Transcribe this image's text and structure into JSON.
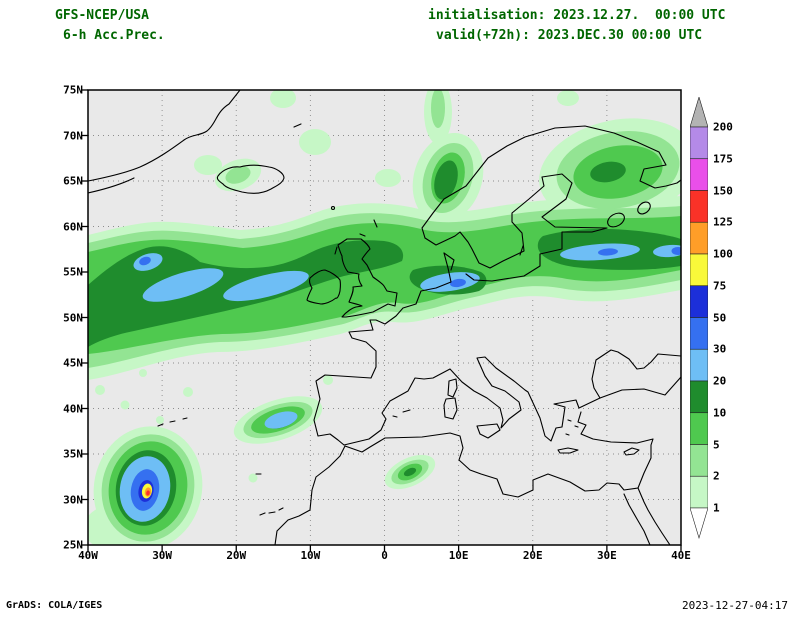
{
  "header": {
    "model": "GFS-NCEP/USA",
    "product": "6-h Acc.Prec.",
    "initialisation": "initialisation: 2023.12.27.  00:00 UTC",
    "valid": "valid(+72h): 2023.DEC.30 00:00 UTC",
    "text_color": "#006600"
  },
  "map": {
    "background_color": "#e9e9e9",
    "lat_ticks": [
      "75N",
      "70N",
      "65N",
      "60N",
      "55N",
      "50N",
      "45N",
      "40N",
      "35N",
      "30N",
      "25N"
    ],
    "lon_ticks": [
      "40W",
      "30W",
      "20W",
      "10W",
      "0",
      "10E",
      "20E",
      "30E",
      "40E"
    ]
  },
  "colorbar": {
    "boundary_labels_top_to_bottom": [
      "200",
      "175",
      "150",
      "125",
      "100",
      "75",
      "50",
      "30",
      "20",
      "10",
      "5",
      "2",
      "1"
    ],
    "segment_colors_top_to_bottom": [
      "#b3b3b3",
      "#b48ae8",
      "#e94fe9",
      "#fa3228",
      "#ff9e28",
      "#f9f93a",
      "#1c2fd9",
      "#3570f0",
      "#6ebef5",
      "#1f8c2d",
      "#4fc94f",
      "#93e493",
      "#c6f7c6",
      "#ffffff"
    ]
  },
  "footer": {
    "left": "GrADS: COLA/IGES",
    "right": "2023-12-27-04:17"
  }
}
